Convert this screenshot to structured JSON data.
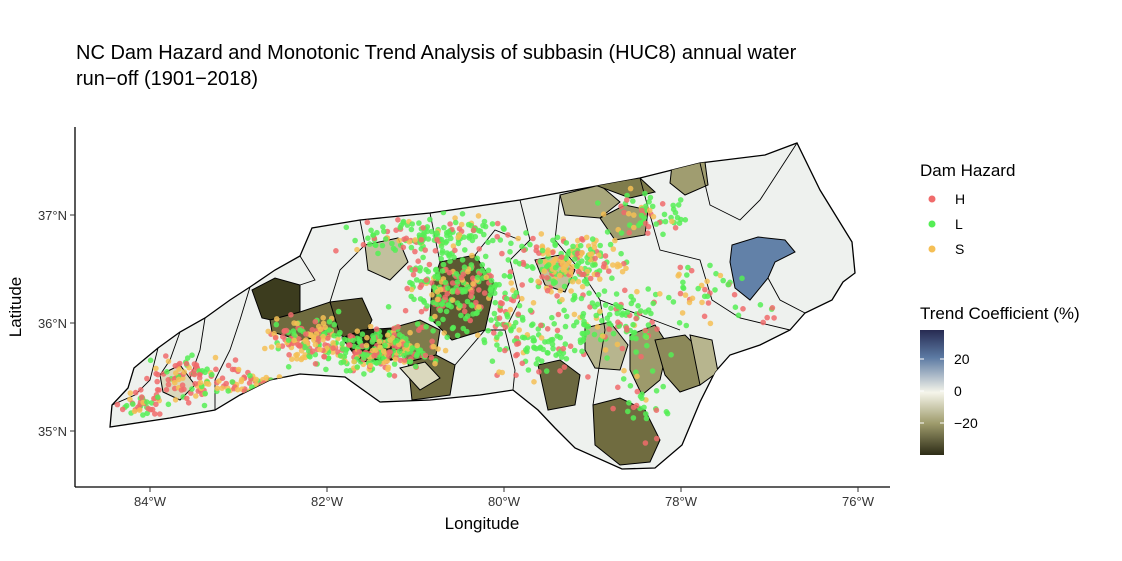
{
  "title": {
    "line1": "NC Dam Hazard and Monotonic Trend Analysis of subbasin (HUC8) annual water",
    "line2": "run−off (1901−2018)"
  },
  "axes": {
    "xlabel": "Longitude",
    "ylabel": "Latitude",
    "xticks": [
      "84°W",
      "82°W",
      "80°W",
      "78°W",
      "76°W"
    ],
    "yticks": [
      "35°N",
      "36°N",
      "37°N"
    ]
  },
  "legend_hazard": {
    "title": "Dam Hazard",
    "items": [
      {
        "label": "H",
        "color": "#f06b6b"
      },
      {
        "label": "L",
        "color": "#55ee55"
      },
      {
        "label": "S",
        "color": "#f5bf55"
      }
    ]
  },
  "legend_trend": {
    "title": "Trend Coefficient (%)",
    "ticks": [
      "20",
      "0",
      "−20"
    ],
    "colors": [
      "#272b52",
      "#5c7aa3",
      "#f5f5ea",
      "#9d9a6b",
      "#2d2c16"
    ]
  },
  "chart_data": {
    "type": "scatter",
    "xlim": [
      -84.8,
      -75.4
    ],
    "ylim": [
      34.45,
      37.85
    ],
    "grid": false,
    "legend_placement": "right"
  }
}
